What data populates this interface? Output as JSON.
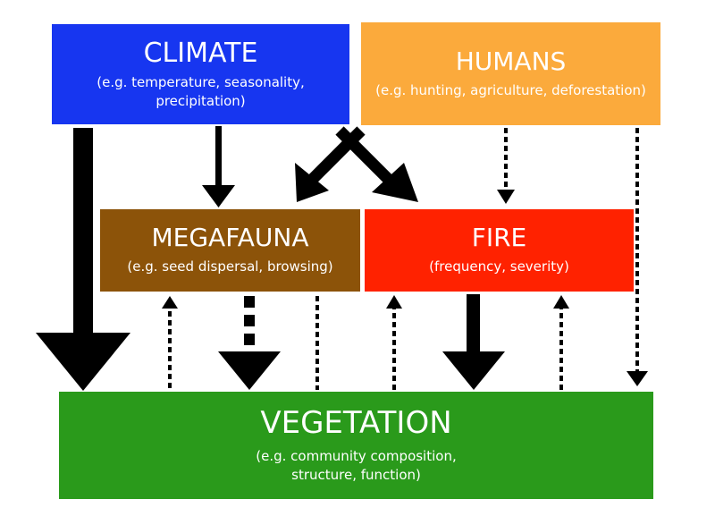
{
  "boxes": {
    "climate": {
      "title": "CLIMATE",
      "line1": "(e.g. temperature, seasonality,",
      "line2": "precipitation)"
    },
    "humans": {
      "title": "HUMANS",
      "line1": "(e.g. hunting, agriculture, deforestation)"
    },
    "megafauna": {
      "title": "MEGAFAUNA",
      "line1": "(e.g. seed dispersal, browsing)"
    },
    "fire": {
      "title": "FIRE",
      "line1": "(frequency, severity)"
    },
    "vegetation": {
      "title": "VEGETATION",
      "line1": "(e.g. community composition,",
      "line2": "structure, function)"
    }
  },
  "colors": {
    "climate": "#1736f0",
    "humans": "#fbaa3c",
    "megafauna": "#8c5309",
    "fire": "#ff2200",
    "vegetation": "#2a9a1b",
    "arrow": "#000000"
  }
}
